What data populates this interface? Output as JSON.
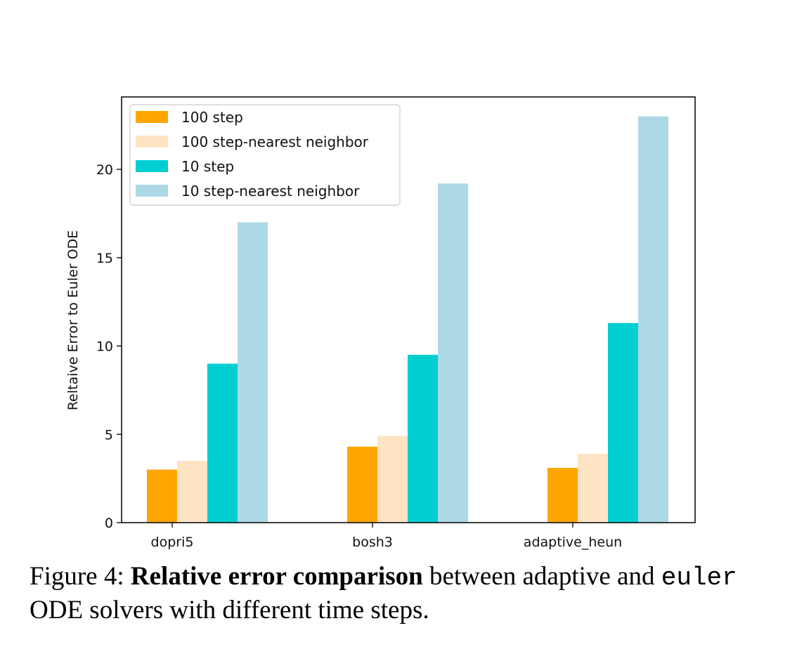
{
  "chart_data": {
    "type": "bar",
    "categories": [
      "dopri5",
      "bosh3",
      "adaptive_heun"
    ],
    "series": [
      {
        "name": "100 step",
        "color": "#FFA500",
        "values": [
          3.0,
          4.3,
          3.1
        ]
      },
      {
        "name": "100 step-nearest neighbor",
        "color": "#FFE4C4",
        "values": [
          3.5,
          4.9,
          3.9
        ]
      },
      {
        "name": "10 step",
        "color": "#00CED1",
        "values": [
          9.0,
          9.5,
          11.3
        ]
      },
      {
        "name": "10 step-nearest neighbor",
        "color": "#ADD8E6",
        "values": [
          17.0,
          19.2,
          23.0
        ]
      }
    ],
    "xlabel": "",
    "ylabel": "Reltaive Error to Euler ODE",
    "ylim": [
      0,
      24.1
    ],
    "yticks": [
      0,
      5,
      10,
      15,
      20
    ],
    "legend_position": "top-left",
    "grid": false
  },
  "caption": {
    "prefix": "Figure 4: ",
    "bold": "Relative error comparison",
    "middle": " between adaptive and ",
    "mono": "euler",
    "suffix": " ODE solvers with different time steps."
  }
}
